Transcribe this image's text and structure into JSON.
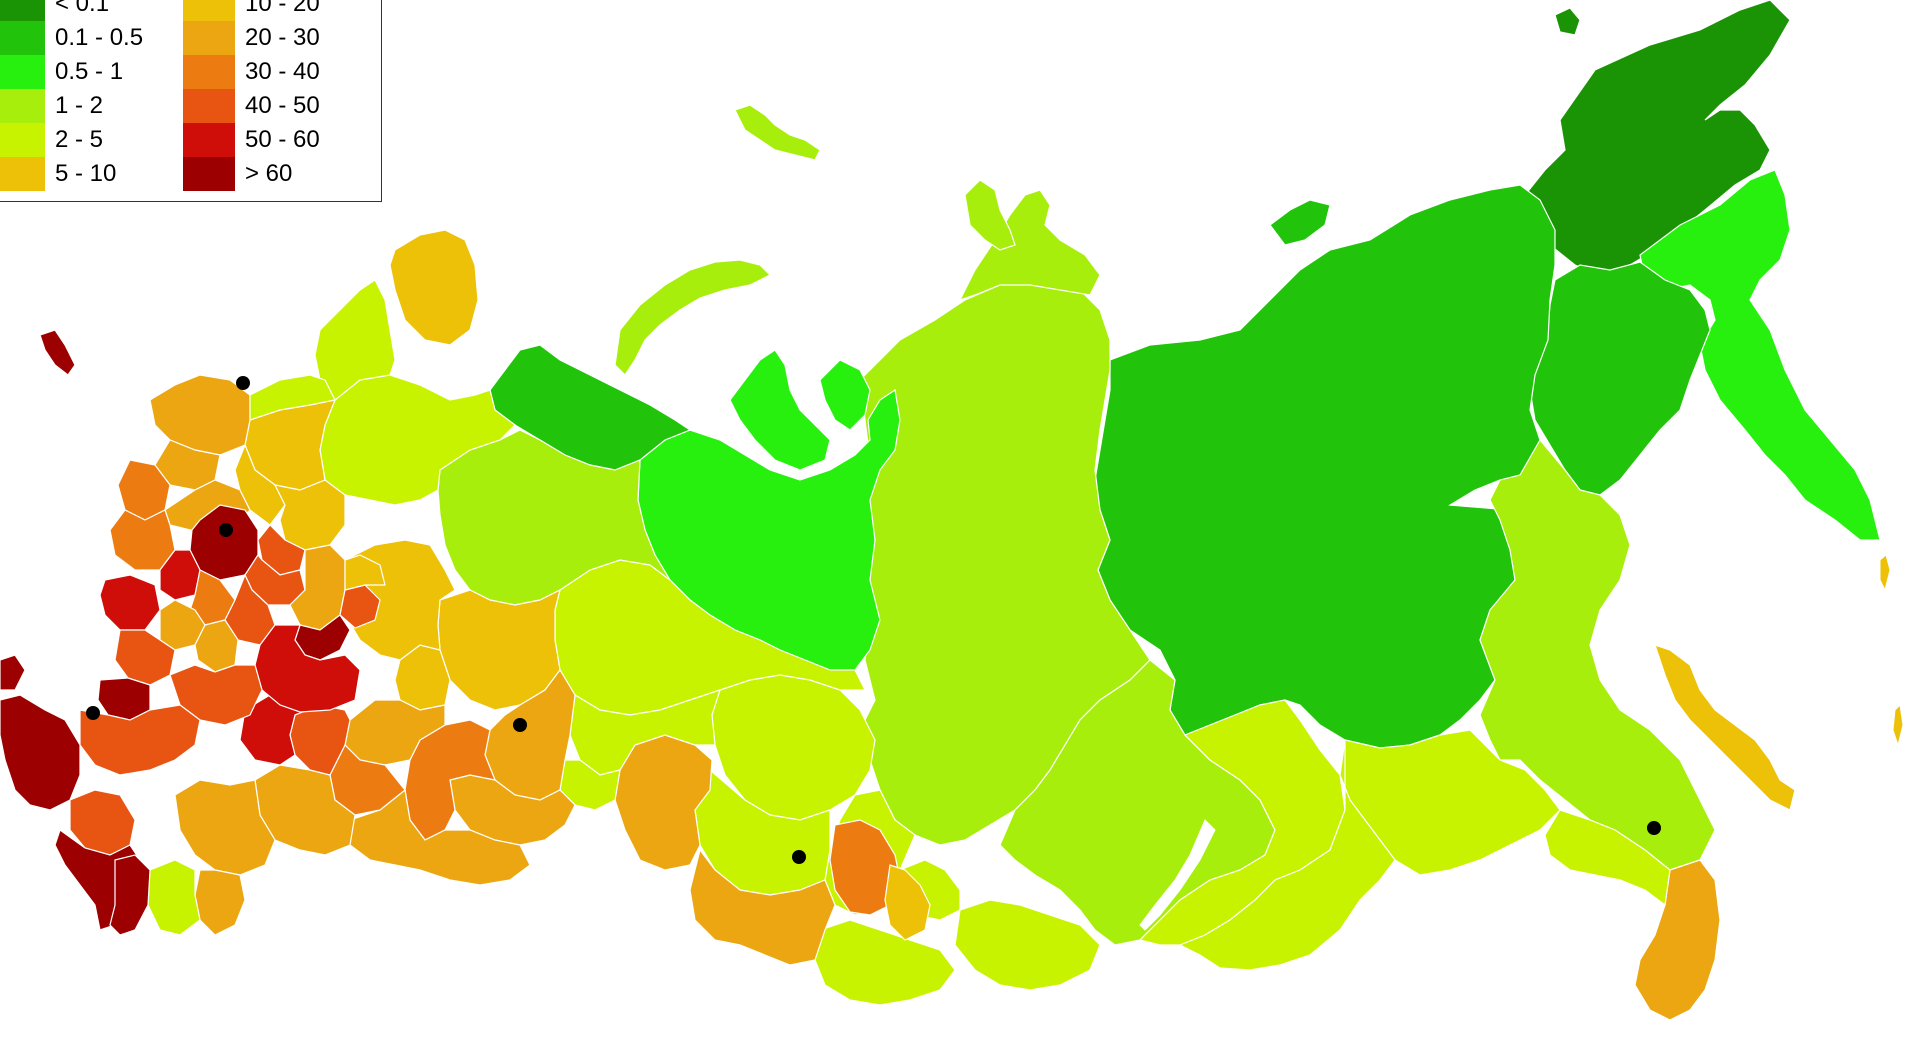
{
  "legend": {
    "items": [
      {
        "label": "< 0.1",
        "color": "#1a9405"
      },
      {
        "label": "0.1 - 0.5",
        "color": "#21c40a"
      },
      {
        "label": "0.5 - 1",
        "color": "#27f00e"
      },
      {
        "label": "1 - 2",
        "color": "#a8ee0c"
      },
      {
        "label": "2 - 5",
        "color": "#c8f300"
      },
      {
        "label": "5 - 10",
        "color": "#edc108"
      },
      {
        "label": "10 - 20",
        "color": "#edc108"
      },
      {
        "label": "20 - 30",
        "color": "#eba612"
      },
      {
        "label": "30 - 40",
        "color": "#ec7c12"
      },
      {
        "label": "40 - 50",
        "color": "#e85412"
      },
      {
        "label": "50 - 60",
        "color": "#cf0d09"
      },
      {
        "label": "> 60",
        "color": "#9c0000"
      }
    ]
  },
  "map": {
    "cities_marker_color": "#000000",
    "border_color": "#ffffff"
  }
}
